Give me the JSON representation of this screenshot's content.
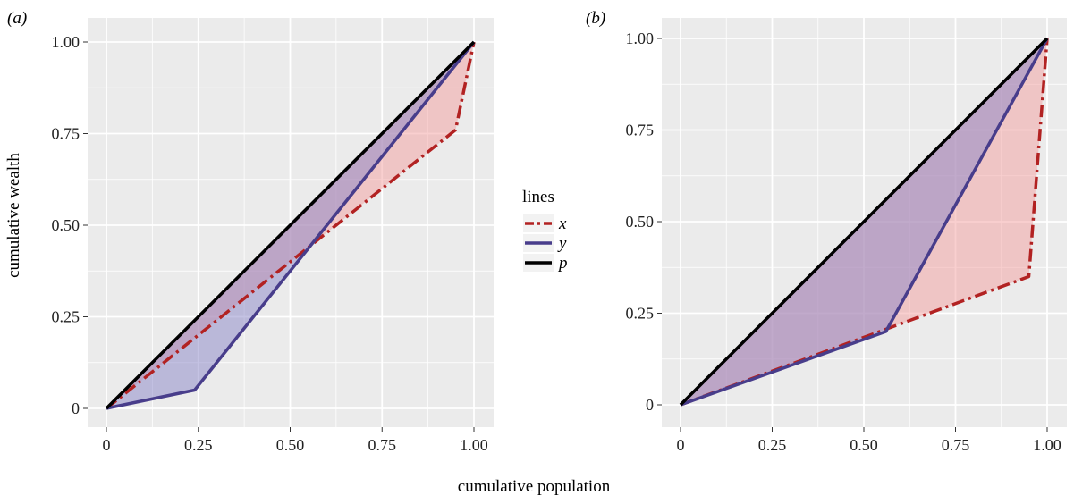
{
  "xlabel": "cumulative population",
  "ylabel": "cumulative wealth",
  "legend": {
    "title": "lines",
    "entries": [
      {
        "key": "x",
        "label": "x",
        "color": "#b22222",
        "dash": "dashdot"
      },
      {
        "key": "y",
        "label": "y",
        "color": "#483d8b",
        "dash": "solid"
      },
      {
        "key": "p",
        "label": "p",
        "color": "#000000",
        "dash": "solid"
      }
    ]
  },
  "colors": {
    "panel_bg": "#ebebeb",
    "grid": "#ffffff",
    "x_line": "#b22222",
    "y_line": "#483d8b",
    "p_line": "#000000",
    "x_fill": "#f4a0a0",
    "y_fill": "#8a86c8"
  },
  "chart_data": [
    {
      "type": "line",
      "panel": "(a)",
      "xlim": [
        0,
        1
      ],
      "ylim": [
        0,
        1
      ],
      "ticks": [
        "0",
        "0.25",
        "0.50",
        "0.75",
        "1.00"
      ],
      "grid": true,
      "series": [
        {
          "name": "x",
          "x": [
            0,
            0.95,
            1.0
          ],
          "y": [
            0,
            0.76,
            1.0
          ]
        },
        {
          "name": "y",
          "x": [
            0,
            0.24,
            1.0
          ],
          "y": [
            0,
            0.05,
            1.0
          ]
        },
        {
          "name": "p",
          "x": [
            0,
            1.0
          ],
          "y": [
            0,
            1.0
          ]
        }
      ]
    },
    {
      "type": "line",
      "panel": "(b)",
      "xlim": [
        0,
        1
      ],
      "ylim": [
        0,
        1
      ],
      "ticks": [
        "0",
        "0.25",
        "0.50",
        "0.75",
        "1.00"
      ],
      "grid": true,
      "series": [
        {
          "name": "x",
          "x": [
            0,
            0.95,
            1.0
          ],
          "y": [
            0,
            0.35,
            1.0
          ]
        },
        {
          "name": "y",
          "x": [
            0,
            0.56,
            1.0
          ],
          "y": [
            0,
            0.2,
            1.0
          ]
        },
        {
          "name": "p",
          "x": [
            0,
            1.0
          ],
          "y": [
            0,
            1.0
          ]
        }
      ]
    }
  ]
}
